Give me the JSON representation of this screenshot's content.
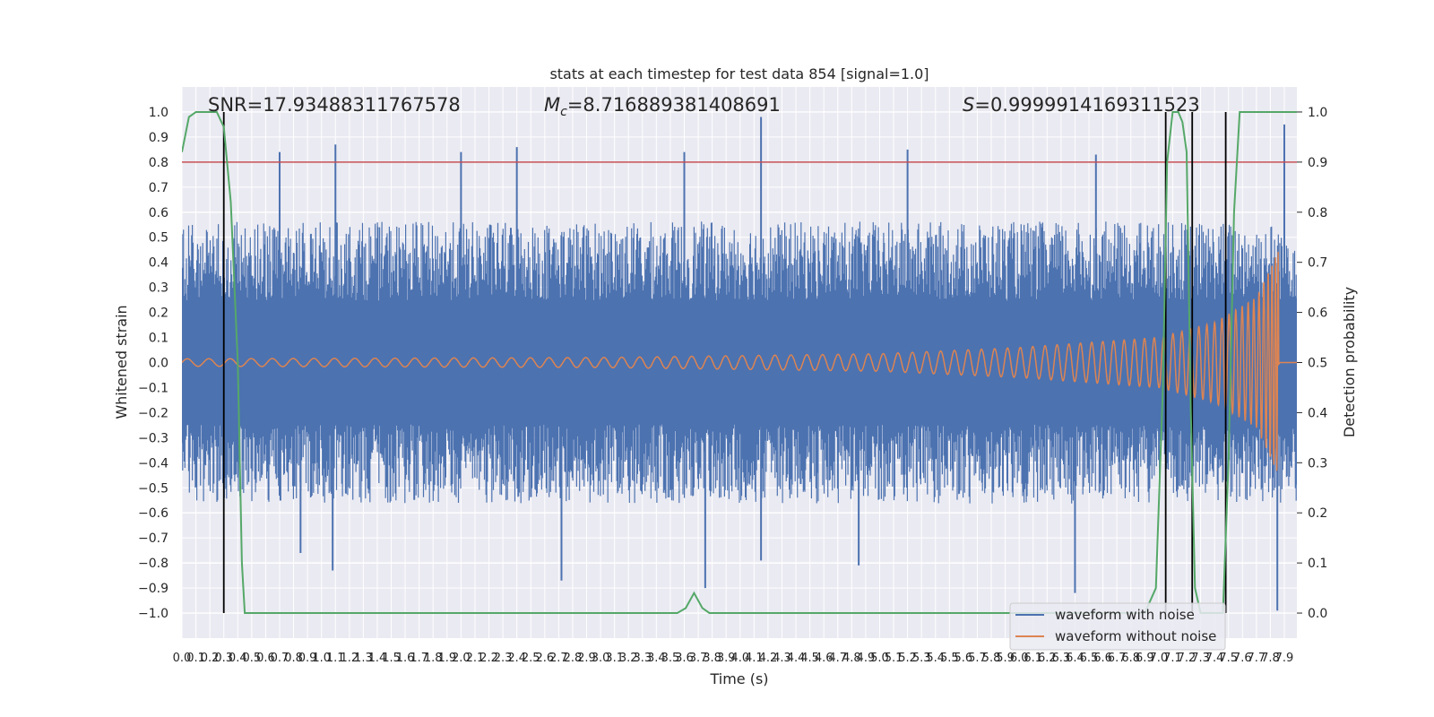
{
  "chart_data": {
    "type": "line",
    "title": "stats at each timestep for test data 854 [signal=1.0]",
    "xlabel": "Time (s)",
    "ylabel": "Whitened strain",
    "ylabel_right": "Detection probability",
    "xlim": [
      0,
      7.99
    ],
    "ylim": [
      -1.1,
      1.1
    ],
    "ylim_right": [
      -0.05,
      1.05
    ],
    "x_ticks": [
      "0.0",
      "0.1",
      "0.2",
      "0.3",
      "0.4",
      "0.5",
      "0.6",
      "0.7",
      "0.8",
      "0.9",
      "1.0",
      "1.1",
      "1.2",
      "1.3",
      "1.4",
      "1.5",
      "1.6",
      "1.7",
      "1.8",
      "1.9",
      "2.0",
      "2.1",
      "2.2",
      "2.3",
      "2.4",
      "2.5",
      "2.6",
      "2.7",
      "2.8",
      "2.9",
      "3.0",
      "3.1",
      "3.2",
      "3.3",
      "3.4",
      "3.5",
      "3.6",
      "3.7",
      "3.8",
      "3.9",
      "4.0",
      "4.1",
      "4.2",
      "4.3",
      "4.4",
      "4.5",
      "4.6",
      "4.7",
      "4.8",
      "4.9",
      "5.0",
      "5.1",
      "5.2",
      "5.3",
      "5.4",
      "5.5",
      "5.6",
      "5.7",
      "5.8",
      "5.9",
      "6.0",
      "6.1",
      "6.2",
      "6.3",
      "6.4",
      "6.5",
      "6.6",
      "6.7",
      "6.8",
      "6.9",
      "7.0",
      "7.1",
      "7.2",
      "7.3",
      "7.4",
      "7.5",
      "7.6",
      "7.7",
      "7.8",
      "7.9"
    ],
    "y_ticks_left": [
      "1.0",
      "0.9",
      "0.8",
      "0.7",
      "0.6",
      "0.5",
      "0.4",
      "0.3",
      "0.2",
      "0.1",
      "0.0",
      "−0.1",
      "−0.2",
      "−0.3",
      "−0.4",
      "−0.5",
      "−0.6",
      "−0.7",
      "−0.8",
      "−0.9",
      "−1.0"
    ],
    "y_ticks_right": [
      "1.0",
      "0.9",
      "0.8",
      "0.7",
      "0.6",
      "0.5",
      "0.4",
      "0.3",
      "0.2",
      "0.1",
      "0.0"
    ],
    "annotations": {
      "snr": "SNR=17.93488311767578",
      "mc_symbol": "M",
      "mc_sub": "c",
      "mc_value": "=8.716889381408691",
      "s_symbol": "S",
      "s_value": "=0.9999914169311523"
    },
    "legend": {
      "placement": "lower-right",
      "entries": [
        {
          "label": "waveform with noise",
          "color": "#4c72b0"
        },
        {
          "label": "waveform without noise",
          "color": "#dd8452"
        }
      ]
    },
    "series": [
      {
        "name": "waveform with noise",
        "color": "#4c72b0",
        "envelope": {
          "typical_peak": 0.45,
          "max_peak": 0.98,
          "min_trough": -0.99
        },
        "spikes": [
          {
            "t": 0.7,
            "v": 0.84
          },
          {
            "t": 1.1,
            "v": 0.87
          },
          {
            "t": 2.0,
            "v": 0.84
          },
          {
            "t": 2.4,
            "v": 0.86
          },
          {
            "t": 3.6,
            "v": 0.84
          },
          {
            "t": 4.15,
            "v": 0.98
          },
          {
            "t": 5.2,
            "v": 0.85
          },
          {
            "t": 6.55,
            "v": 0.83
          },
          {
            "t": 7.9,
            "v": 0.95
          },
          {
            "t": 0.85,
            "v": -0.76
          },
          {
            "t": 1.08,
            "v": -0.83
          },
          {
            "t": 2.72,
            "v": -0.87
          },
          {
            "t": 3.75,
            "v": -0.9
          },
          {
            "t": 4.15,
            "v": -0.79
          },
          {
            "t": 4.85,
            "v": -0.81
          },
          {
            "t": 6.4,
            "v": -0.92
          },
          {
            "t": 7.85,
            "v": -0.99
          }
        ]
      },
      {
        "name": "waveform without noise",
        "color": "#dd8452",
        "description_points": [
          {
            "t": 0.0,
            "amp": 0.015
          },
          {
            "t": 3.0,
            "amp": 0.02
          },
          {
            "t": 5.0,
            "amp": 0.035
          },
          {
            "t": 6.0,
            "amp": 0.06
          },
          {
            "t": 7.0,
            "amp": 0.1
          },
          {
            "t": 7.4,
            "amp": 0.16
          },
          {
            "t": 7.7,
            "amp": 0.26
          },
          {
            "t": 7.86,
            "amp": 0.45
          },
          {
            "t": 7.88,
            "amp": 0.0
          }
        ]
      },
      {
        "name": "detection probability",
        "color": "#55a868",
        "axis": "right",
        "x": [
          0.0,
          0.05,
          0.1,
          0.15,
          0.2,
          0.25,
          0.3,
          0.35,
          0.4,
          0.43,
          0.45,
          3.55,
          3.61,
          3.67,
          3.73,
          3.78,
          6.9,
          6.98,
          7.03,
          7.06,
          7.1,
          7.14,
          7.17,
          7.2,
          7.23,
          7.26,
          7.3,
          7.4,
          7.46,
          7.5,
          7.54,
          7.58,
          7.62,
          7.7,
          7.99
        ],
        "y": [
          0.92,
          0.99,
          1.0,
          1.0,
          1.0,
          1.0,
          0.97,
          0.82,
          0.5,
          0.1,
          0.0,
          0.0,
          0.01,
          0.04,
          0.01,
          0.0,
          0.0,
          0.05,
          0.45,
          0.9,
          1.0,
          1.0,
          0.98,
          0.92,
          0.4,
          0.05,
          0.0,
          0.0,
          0.0,
          0.3,
          0.8,
          1.0,
          1.0,
          1.0,
          1.0
        ]
      }
    ],
    "threshold_line": {
      "value_right": 0.9,
      "color": "#c44e52"
    },
    "vertical_markers": [
      0.3,
      7.05,
      7.24,
      7.48
    ]
  }
}
